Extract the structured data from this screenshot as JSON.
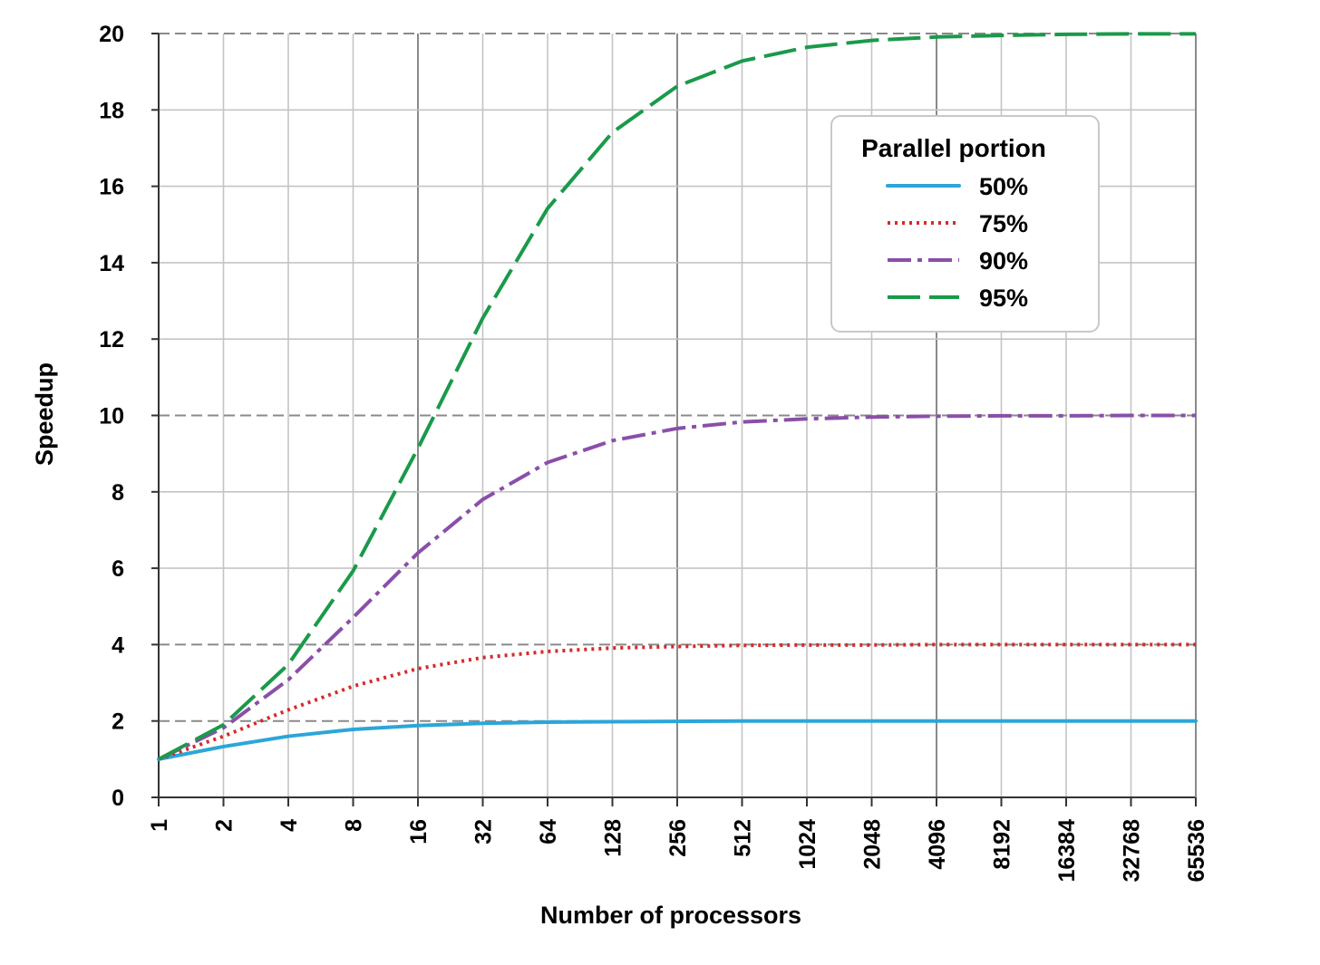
{
  "chart_data": {
    "type": "line",
    "title": "",
    "xlabel": "Number of processors",
    "ylabel": "Speedup",
    "x_scale": "log2",
    "categories": [
      "1",
      "2",
      "4",
      "8",
      "16",
      "32",
      "64",
      "128",
      "256",
      "512",
      "1024",
      "2048",
      "4096",
      "8192",
      "16384",
      "32768",
      "65536"
    ],
    "x": [
      1,
      2,
      4,
      8,
      16,
      32,
      64,
      128,
      256,
      512,
      1024,
      2048,
      4096,
      8192,
      16384,
      32768,
      65536
    ],
    "ylim": [
      0,
      20
    ],
    "yticks": [
      "0",
      "2",
      "4",
      "6",
      "8",
      "10",
      "12",
      "14",
      "16",
      "18",
      "20"
    ],
    "grid": true,
    "legend": {
      "title": "Parallel portion",
      "placement": "top-right"
    },
    "series": [
      {
        "name": "50%",
        "color": "#2ba6d9",
        "style": "solid",
        "values": [
          1.0,
          1.33,
          1.6,
          1.78,
          1.88,
          1.94,
          1.97,
          1.98,
          1.99,
          2.0,
          2.0,
          2.0,
          2.0,
          2.0,
          2.0,
          2.0,
          2.0
        ]
      },
      {
        "name": "75%",
        "color": "#d62a2a",
        "style": "dotted",
        "values": [
          1.0,
          1.6,
          2.29,
          2.91,
          3.37,
          3.66,
          3.82,
          3.91,
          3.95,
          3.98,
          3.99,
          3.99,
          4.0,
          4.0,
          4.0,
          4.0,
          4.0
        ]
      },
      {
        "name": "90%",
        "color": "#8a4fa8",
        "style": "dashdot",
        "values": [
          1.0,
          1.82,
          3.08,
          4.71,
          6.4,
          7.8,
          8.77,
          9.34,
          9.66,
          9.83,
          9.91,
          9.96,
          9.98,
          9.99,
          9.99,
          10.0,
          10.0
        ]
      },
      {
        "name": "95%",
        "color": "#1a9a4a",
        "style": "dashed",
        "values": [
          1.0,
          1.9,
          3.48,
          5.93,
          9.14,
          12.55,
          15.42,
          17.41,
          18.62,
          19.28,
          19.64,
          19.82,
          19.91,
          19.95,
          19.98,
          19.99,
          19.99
        ]
      }
    ]
  }
}
